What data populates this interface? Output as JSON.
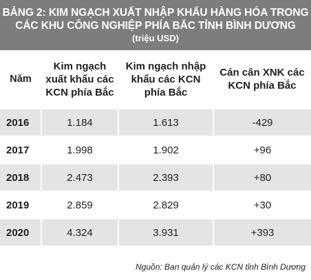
{
  "title": {
    "line1": "BẢNG 2: KIM NGẠCH XUẤT NHẬP KHẨU HÀNG HÓA TRONG",
    "line2": "CÁC KHU CÔNG NGHIỆP PHÍA BẮC TỈNH BÌNH DƯƠNG",
    "unit": "(triệu USD)"
  },
  "table": {
    "headers": [
      "Năm",
      "Kim ngạch xuất khẩu các KCN phía Bắc",
      "Kim ngạch nhập khẩu các KCN phía Bắc",
      "Cán cân XNK các KCN phía Bắc"
    ],
    "rows": [
      {
        "year": "2016",
        "export": "1.184",
        "import": "1.613",
        "balance": "-429"
      },
      {
        "year": "2017",
        "export": "1.998",
        "import": "1.902",
        "balance": "+96"
      },
      {
        "year": "2018",
        "export": "2.473",
        "import": "2.393",
        "balance": "+80"
      },
      {
        "year": "2019",
        "export": "2.859",
        "import": "2.829",
        "balance": "+30"
      },
      {
        "year": "2020",
        "export": "4.324",
        "import": "3.931",
        "balance": "+393"
      }
    ]
  },
  "source": "Nguồn: Ban quản lý  các KCN tỉnh Bình Dương",
  "colors": {
    "title_background": "#7b7d7f",
    "shaded_row": "#e4e4e4"
  }
}
